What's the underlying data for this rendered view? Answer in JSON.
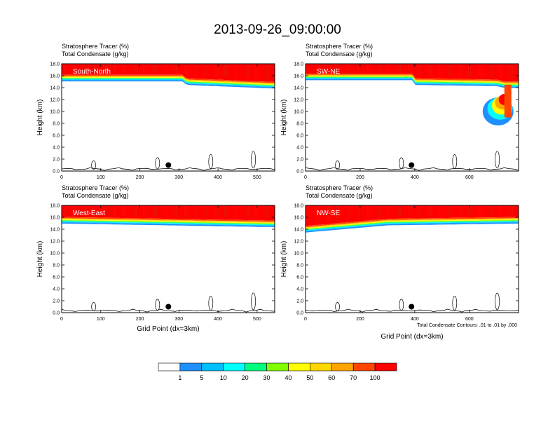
{
  "title": "2013-09-26_09:00:00",
  "chart_data": {
    "type": "heatmap",
    "colorbar": {
      "colors": [
        "#ffffff",
        "#1e90ff",
        "#00bfff",
        "#00ffff",
        "#00ff7f",
        "#7fff00",
        "#ffff00",
        "#ffd700",
        "#ffa500",
        "#ff4500",
        "#ff0000"
      ],
      "labels": [
        "1",
        "5",
        "10",
        "20",
        "30",
        "40",
        "50",
        "60",
        "70",
        "100"
      ]
    },
    "panels": [
      {
        "name": "South-North",
        "title_line1": "Stratosphere Tracer   (%)",
        "title_line2": "Total Condensate   (g/kg)",
        "xmax": 545,
        "xticks": [
          "0",
          "100",
          "200",
          "300",
          "400",
          "500"
        ],
        "xtick_values": [
          0,
          100,
          200,
          300,
          400,
          500
        ],
        "ylabel": "Height (km)",
        "yticks": [
          "0.0",
          "2.0",
          "4.0",
          "6.0",
          "8.0",
          "10.0",
          "12.0",
          "14.0",
          "16.0",
          "18.0"
        ],
        "ylim": [
          0,
          18
        ],
        "tropopause_km": [
          [
            0,
            15.6
          ],
          [
            310,
            15.6
          ],
          [
            320,
            15.0
          ],
          [
            545,
            14.4
          ]
        ],
        "marker_x": 273,
        "xlabel": ""
      },
      {
        "name": "SW-NE",
        "title_line1": "Stratosphere Tracer   (%)",
        "title_line2": "Total Condensate   (g/kg)",
        "xmax": 780,
        "xticks": [
          "0",
          "200",
          "400",
          "600"
        ],
        "xtick_values": [
          0,
          200,
          400,
          600
        ],
        "ylabel": "Height (km)",
        "yticks": [
          "0.0",
          "2.0",
          "4.0",
          "6.0",
          "8.0",
          "10.0",
          "12.0",
          "14.0",
          "16.0",
          "18.0"
        ],
        "ylim": [
          0,
          18
        ],
        "tropopause_km": [
          [
            0,
            15.8
          ],
          [
            390,
            15.8
          ],
          [
            400,
            15.0
          ],
          [
            700,
            14.8
          ],
          [
            730,
            14.5
          ]
        ],
        "marker_x": 388,
        "xlabel": ""
      },
      {
        "name": "West-East",
        "title_line1": "Stratosphere Tracer   (%)",
        "title_line2": "Total Condensate   (g/kg)",
        "xmax": 545,
        "xticks": [
          "0",
          "100",
          "200",
          "300",
          "400",
          "500"
        ],
        "xtick_values": [
          0,
          100,
          200,
          300,
          400,
          500
        ],
        "ylabel": "Height (km)",
        "yticks": [
          "0.0",
          "2.0",
          "4.0",
          "6.0",
          "8.0",
          "10.0",
          "12.0",
          "14.0",
          "16.0",
          "18.0"
        ],
        "ylim": [
          0,
          18
        ],
        "tropopause_km": [
          [
            0,
            15.5
          ],
          [
            545,
            14.9
          ]
        ],
        "marker_x": 273,
        "xlabel": "Grid Point (dx=3km)"
      },
      {
        "name": "NW-SE",
        "title_line1": "Stratosphere Tracer   (%)",
        "title_line2": "Total Condensate   (g/kg)",
        "xmax": 780,
        "xticks": [
          "0",
          "200",
          "400",
          "600"
        ],
        "xtick_values": [
          0,
          200,
          400,
          600
        ],
        "ylabel": "Height (km)",
        "yticks": [
          "0.0",
          "2.0",
          "4.0",
          "6.0",
          "8.0",
          "10.0",
          "12.0",
          "14.0",
          "16.0",
          "18.0"
        ],
        "ylim": [
          0,
          18
        ],
        "tropopause_km": [
          [
            0,
            14.0
          ],
          [
            300,
            15.2
          ],
          [
            780,
            15.5
          ]
        ],
        "marker_x": 388,
        "xlabel": "Grid Point (dx=3km)",
        "note": "Total Condensate Contours: .01 to .01 by .000"
      }
    ]
  }
}
